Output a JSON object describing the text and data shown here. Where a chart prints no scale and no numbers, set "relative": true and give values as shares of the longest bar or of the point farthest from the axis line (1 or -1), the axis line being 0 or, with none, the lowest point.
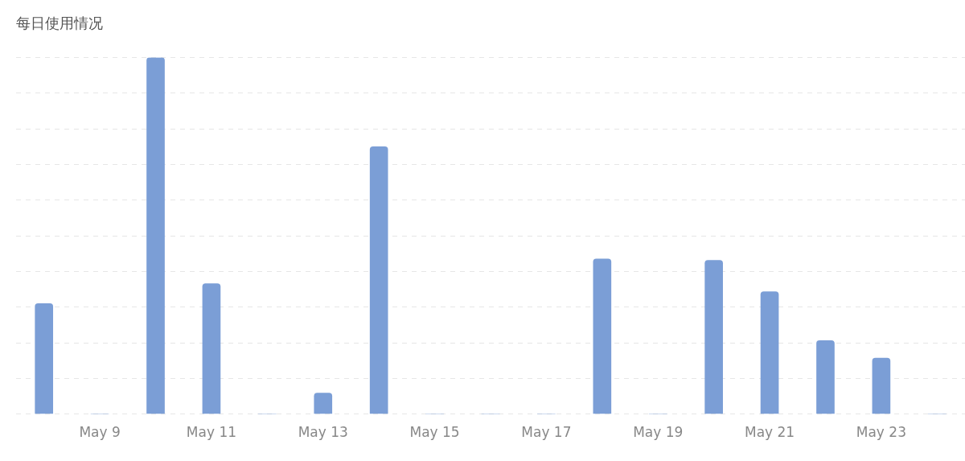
{
  "chart_data": {
    "type": "bar",
    "title": "每日使用情况",
    "relative": true,
    "categories": [
      null,
      "May 9",
      null,
      "May 11",
      null,
      "May 13",
      null,
      "May 15",
      null,
      "May 17",
      null,
      "May 19",
      null,
      "May 21",
      null,
      "May 23",
      null
    ],
    "values": [
      0.31,
      0,
      1,
      0.366,
      0,
      0.059,
      0.75,
      0,
      0,
      0,
      0.435,
      0,
      0.431,
      0.343,
      0.206,
      0.157,
      0
    ],
    "color": "#7b9ed6",
    "grid": "y",
    "legend": false
  }
}
